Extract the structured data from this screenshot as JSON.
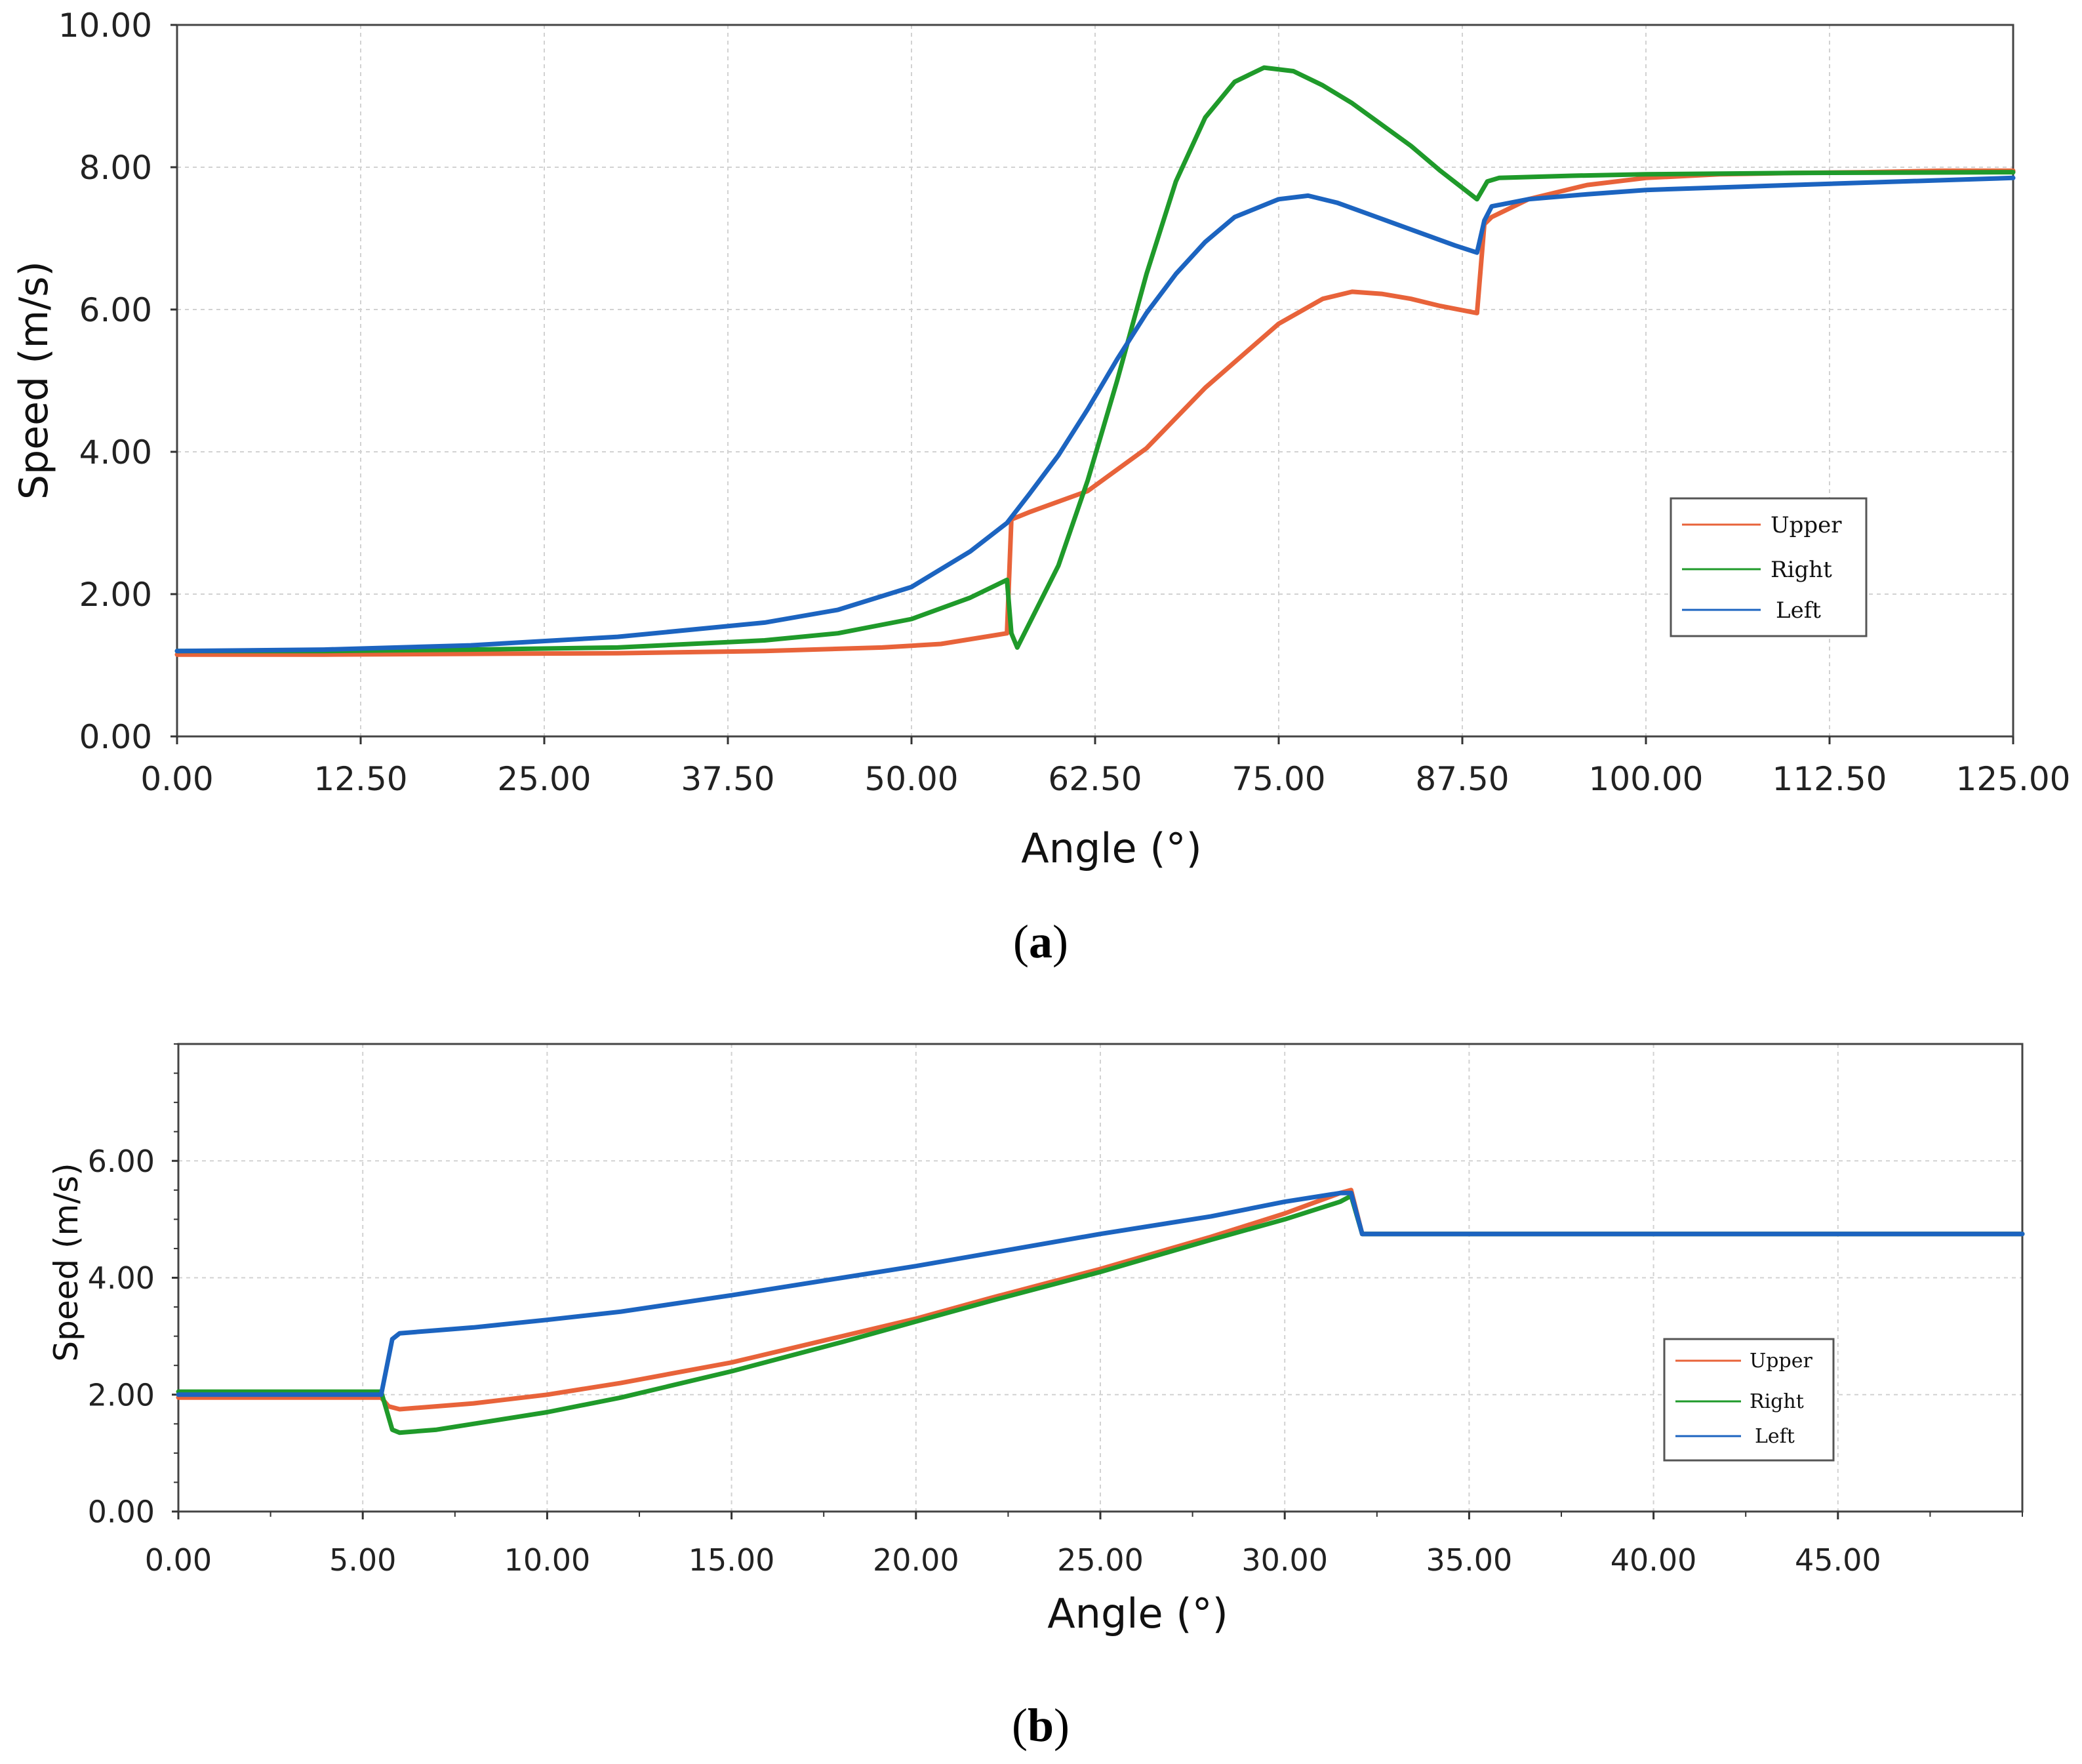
{
  "colors": {
    "upper": "#e8633a",
    "right": "#1f9a2a",
    "left": "#1c64c0",
    "grid": "#d2d2d2",
    "axis": "#333333"
  },
  "chart_data": [
    {
      "type": "line",
      "panel_label": "(a)",
      "panel_letter": "a",
      "xlabel": "Angle (°)",
      "ylabel": "Speed (m/s)",
      "xlim": [
        0,
        125
      ],
      "ylim": [
        0,
        10
      ],
      "xticks": [
        "0.00",
        "12.50",
        "25.00",
        "37.50",
        "50.00",
        "62.50",
        "75.00",
        "87.50",
        "100.00",
        "112.50",
        "125.00"
      ],
      "yticks": [
        "0.00",
        "2.00",
        "4.00",
        "6.00",
        "8.00",
        "10.00"
      ],
      "grid": true,
      "legend_position": "right",
      "series": [
        {
          "name": "Upper",
          "color_key": "upper",
          "x": [
            0,
            10,
            20,
            30,
            40,
            48,
            52,
            56.5,
            56.8,
            58,
            62,
            66,
            70,
            75,
            78,
            80,
            82,
            84,
            86,
            88.5,
            89,
            89.5,
            92,
            96,
            100,
            105,
            110,
            115,
            120,
            125
          ],
          "y": [
            1.15,
            1.15,
            1.16,
            1.17,
            1.2,
            1.25,
            1.3,
            1.45,
            3.05,
            3.15,
            3.45,
            4.05,
            4.9,
            5.8,
            6.15,
            6.25,
            6.22,
            6.15,
            6.05,
            5.95,
            7.2,
            7.3,
            7.55,
            7.75,
            7.85,
            7.9,
            7.92,
            7.93,
            7.95,
            7.95
          ]
        },
        {
          "name": "Right",
          "color_key": "right",
          "x": [
            0,
            10,
            20,
            30,
            40,
            45,
            50,
            54,
            56.5,
            56.8,
            57.2,
            60,
            62,
            64,
            66,
            68,
            70,
            72,
            74,
            76,
            78,
            80,
            82,
            84,
            86,
            88.5,
            89.2,
            90,
            95,
            100,
            110,
            125
          ],
          "y": [
            1.2,
            1.2,
            1.22,
            1.25,
            1.35,
            1.45,
            1.65,
            1.95,
            2.2,
            1.45,
            1.25,
            2.4,
            3.6,
            5.0,
            6.5,
            7.8,
            8.7,
            9.2,
            9.4,
            9.35,
            9.15,
            8.9,
            8.6,
            8.3,
            7.95,
            7.55,
            7.8,
            7.85,
            7.88,
            7.9,
            7.92,
            7.93
          ]
        },
        {
          "name": "Left",
          "color_key": "left",
          "x": [
            0,
            10,
            20,
            30,
            40,
            45,
            50,
            54,
            56.5,
            58,
            60,
            62,
            64,
            66,
            68,
            70,
            72,
            75,
            77,
            79,
            81,
            83,
            85,
            87,
            88.5,
            89,
            89.5,
            92,
            96,
            100,
            110,
            125
          ],
          "y": [
            1.2,
            1.22,
            1.28,
            1.4,
            1.6,
            1.78,
            2.1,
            2.6,
            3.0,
            3.4,
            3.95,
            4.6,
            5.3,
            5.95,
            6.5,
            6.95,
            7.3,
            7.55,
            7.6,
            7.5,
            7.35,
            7.2,
            7.05,
            6.9,
            6.8,
            7.25,
            7.45,
            7.55,
            7.62,
            7.68,
            7.75,
            7.85
          ]
        }
      ]
    },
    {
      "type": "line",
      "panel_label": "(b)",
      "panel_letter": "b",
      "xlabel": "Angle (°)",
      "ylabel": "Speed (m/s)",
      "xlim": [
        0,
        50
      ],
      "ylim": [
        0,
        8
      ],
      "xticks": [
        "0.00",
        "5.00",
        "10.00",
        "15.00",
        "20.00",
        "25.00",
        "30.00",
        "35.00",
        "40.00",
        "45.00"
      ],
      "yticks": [
        "0.00",
        "2.00",
        "4.00",
        "6.00"
      ],
      "grid": true,
      "legend_position": "bottom-right",
      "series": [
        {
          "name": "Upper",
          "color_key": "upper",
          "x": [
            0,
            5.5,
            5.7,
            6,
            8,
            10,
            12,
            15,
            18,
            20,
            22,
            25,
            28,
            30,
            31.5,
            31.8,
            32.1,
            35,
            40,
            45,
            50
          ],
          "y": [
            1.95,
            1.95,
            1.8,
            1.75,
            1.85,
            2.0,
            2.2,
            2.55,
            3.0,
            3.3,
            3.65,
            4.15,
            4.7,
            5.1,
            5.45,
            5.5,
            4.75,
            4.75,
            4.75,
            4.75,
            4.75
          ]
        },
        {
          "name": "Right",
          "color_key": "right",
          "x": [
            0,
            5.5,
            5.8,
            6,
            7,
            8,
            10,
            12,
            15,
            18,
            20,
            22,
            25,
            28,
            30,
            31.5,
            31.8,
            32.1,
            35,
            40,
            45,
            50
          ],
          "y": [
            2.05,
            2.05,
            1.4,
            1.35,
            1.4,
            1.5,
            1.7,
            1.95,
            2.4,
            2.9,
            3.25,
            3.6,
            4.1,
            4.65,
            5.0,
            5.3,
            5.4,
            4.75,
            4.75,
            4.75,
            4.75,
            4.75
          ]
        },
        {
          "name": "Left",
          "color_key": "left",
          "x": [
            0,
            5.5,
            5.8,
            6,
            8,
            10,
            12,
            15,
            18,
            20,
            22,
            25,
            28,
            30,
            31.5,
            31.8,
            32.1,
            35,
            40,
            45,
            50
          ],
          "y": [
            2.0,
            2.0,
            2.95,
            3.05,
            3.15,
            3.28,
            3.42,
            3.7,
            4.0,
            4.2,
            4.42,
            4.75,
            5.05,
            5.3,
            5.45,
            5.45,
            4.75,
            4.75,
            4.75,
            4.75,
            4.75
          ]
        }
      ]
    }
  ]
}
